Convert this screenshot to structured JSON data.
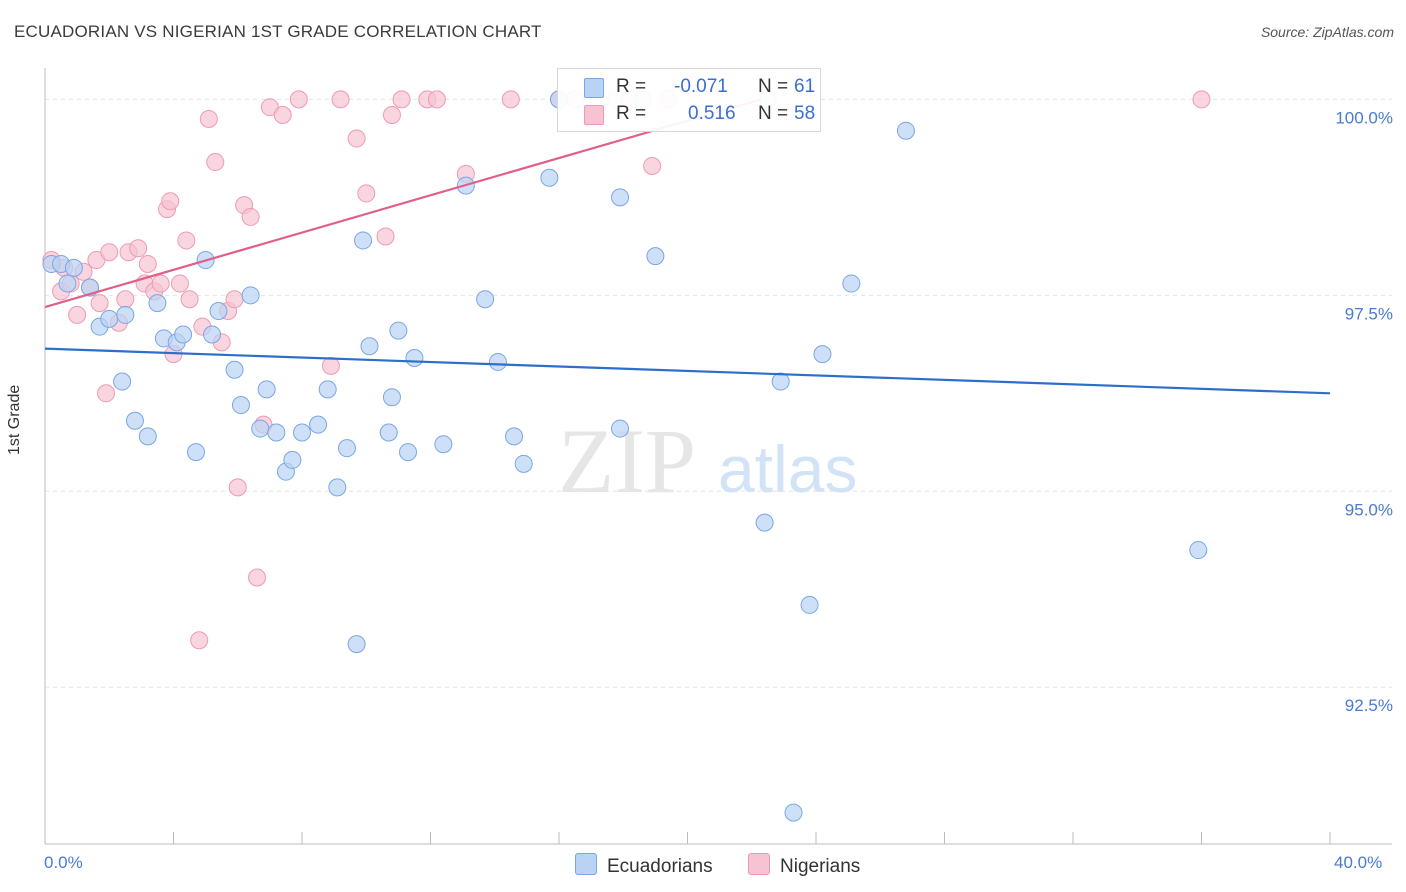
{
  "title": "ECUADORIAN VS NIGERIAN 1ST GRADE CORRELATION CHART",
  "source": "Source: ZipAtlas.com",
  "watermark": {
    "part1": "ZIP",
    "part2": "atlas"
  },
  "colors": {
    "blue_fill": "#b9d3f4",
    "blue_stroke": "#7aa7e2",
    "blue_line": "#2b6fcb",
    "pink_fill": "#f7c3d3",
    "pink_stroke": "#ee9ab4",
    "pink_line": "#e0608a",
    "tick_text": "#4a7bd0"
  },
  "legend": {
    "rows": [
      {
        "label": "R =",
        "r": "-0.071",
        "n_label": "N =",
        "n": "61",
        "series": "Ecuadorians"
      },
      {
        "label": "R =",
        "r": "0.516",
        "n_label": "N =",
        "n": "58",
        "series": "Nigerians"
      }
    ]
  },
  "bottom_legend": [
    "Ecuadorians",
    "Nigerians"
  ],
  "chart_data": {
    "type": "scatter",
    "title": "ECUADORIAN VS NIGERIAN 1ST GRADE CORRELATION CHART",
    "xlabel": "",
    "ylabel": "1st Grade",
    "xlim": [
      0,
      40
    ],
    "ylim": [
      90.5,
      100.4
    ],
    "x_tick_labels": [
      "0.0%",
      "40.0%"
    ],
    "y_ticks": [
      92.5,
      95.0,
      97.5,
      100.0
    ],
    "y_tick_labels": [
      "92.5%",
      "95.0%",
      "97.5%",
      "100.0%"
    ],
    "grid": true,
    "series": [
      {
        "name": "Ecuadorians",
        "r": -0.071,
        "n": 61,
        "trend": {
          "x": [
            0,
            40
          ],
          "y": [
            96.82,
            96.25
          ]
        },
        "points": [
          [
            0.2,
            97.9
          ],
          [
            0.5,
            97.9
          ],
          [
            0.7,
            97.65
          ],
          [
            0.9,
            97.85
          ],
          [
            1.4,
            97.6
          ],
          [
            1.7,
            97.1
          ],
          [
            2.0,
            97.2
          ],
          [
            2.4,
            96.4
          ],
          [
            2.5,
            97.25
          ],
          [
            2.8,
            95.9
          ],
          [
            3.2,
            95.7
          ],
          [
            3.5,
            97.4
          ],
          [
            3.7,
            96.95
          ],
          [
            4.1,
            96.9
          ],
          [
            4.3,
            97.0
          ],
          [
            4.7,
            95.5
          ],
          [
            5.0,
            97.95
          ],
          [
            5.2,
            97.0
          ],
          [
            5.4,
            97.3
          ],
          [
            5.9,
            96.55
          ],
          [
            6.1,
            96.1
          ],
          [
            6.4,
            97.5
          ],
          [
            6.7,
            95.8
          ],
          [
            6.9,
            96.3
          ],
          [
            7.2,
            95.75
          ],
          [
            7.5,
            95.25
          ],
          [
            7.7,
            95.4
          ],
          [
            8.0,
            95.75
          ],
          [
            8.5,
            95.85
          ],
          [
            8.8,
            96.3
          ],
          [
            9.1,
            95.05
          ],
          [
            9.4,
            95.55
          ],
          [
            9.7,
            93.05
          ],
          [
            9.9,
            98.2
          ],
          [
            10.1,
            96.85
          ],
          [
            10.7,
            95.75
          ],
          [
            10.8,
            96.2
          ],
          [
            11.0,
            97.05
          ],
          [
            11.3,
            95.5
          ],
          [
            11.5,
            96.7
          ],
          [
            12.4,
            95.6
          ],
          [
            13.1,
            98.9
          ],
          [
            13.7,
            97.45
          ],
          [
            14.1,
            96.65
          ],
          [
            14.6,
            95.7
          ],
          [
            14.9,
            95.35
          ],
          [
            15.7,
            99.0
          ],
          [
            16.0,
            100.0
          ],
          [
            17.9,
            95.8
          ],
          [
            17.9,
            98.75
          ],
          [
            18.6,
            100.0
          ],
          [
            19.0,
            98.0
          ],
          [
            22.5,
            100.0
          ],
          [
            22.4,
            94.6
          ],
          [
            22.9,
            96.4
          ],
          [
            23.3,
            90.9
          ],
          [
            23.8,
            93.55
          ],
          [
            24.2,
            96.75
          ],
          [
            25.1,
            97.65
          ],
          [
            26.8,
            99.6
          ],
          [
            35.9,
            94.25
          ]
        ]
      },
      {
        "name": "Nigerians",
        "r": 0.516,
        "n": 58,
        "trend": {
          "x": [
            0,
            22.3
          ],
          "y": [
            97.35,
            100.0
          ]
        },
        "points": [
          [
            0.2,
            97.95
          ],
          [
            0.5,
            97.55
          ],
          [
            0.6,
            97.85
          ],
          [
            0.8,
            97.65
          ],
          [
            1.0,
            97.25
          ],
          [
            1.2,
            97.8
          ],
          [
            1.4,
            97.6
          ],
          [
            1.6,
            97.95
          ],
          [
            1.7,
            97.4
          ],
          [
            1.9,
            96.25
          ],
          [
            2.0,
            98.05
          ],
          [
            2.3,
            97.15
          ],
          [
            2.5,
            97.45
          ],
          [
            2.6,
            98.05
          ],
          [
            2.9,
            98.1
          ],
          [
            3.1,
            97.65
          ],
          [
            3.2,
            97.9
          ],
          [
            3.4,
            97.55
          ],
          [
            3.6,
            97.65
          ],
          [
            3.8,
            98.6
          ],
          [
            3.9,
            98.7
          ],
          [
            4.0,
            96.75
          ],
          [
            4.2,
            97.65
          ],
          [
            4.4,
            98.2
          ],
          [
            4.5,
            97.45
          ],
          [
            4.8,
            93.1
          ],
          [
            4.9,
            97.1
          ],
          [
            5.1,
            99.75
          ],
          [
            5.3,
            99.2
          ],
          [
            5.5,
            96.9
          ],
          [
            5.7,
            97.3
          ],
          [
            5.9,
            97.45
          ],
          [
            6.0,
            95.05
          ],
          [
            6.2,
            98.65
          ],
          [
            6.4,
            98.5
          ],
          [
            6.6,
            93.9
          ],
          [
            6.8,
            95.85
          ],
          [
            7.0,
            99.9
          ],
          [
            7.4,
            99.8
          ],
          [
            7.9,
            100.0
          ],
          [
            8.9,
            96.6
          ],
          [
            9.2,
            100.0
          ],
          [
            9.7,
            99.5
          ],
          [
            10.0,
            98.8
          ],
          [
            10.6,
            98.25
          ],
          [
            10.8,
            99.8
          ],
          [
            11.1,
            100.0
          ],
          [
            11.9,
            100.0
          ],
          [
            12.2,
            100.0
          ],
          [
            13.1,
            99.05
          ],
          [
            14.5,
            100.0
          ],
          [
            16.0,
            100.0
          ],
          [
            16.5,
            100.0
          ],
          [
            17.8,
            100.0
          ],
          [
            18.9,
            99.15
          ],
          [
            19.4,
            100.0
          ],
          [
            36.0,
            100.0
          ],
          [
            18.2,
            100.0
          ]
        ]
      }
    ]
  }
}
